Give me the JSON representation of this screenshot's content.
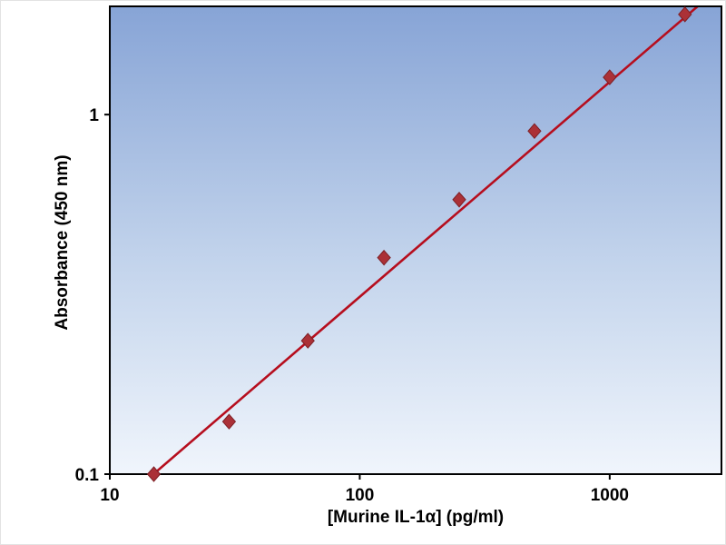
{
  "chart_data": {
    "type": "scatter",
    "title": "",
    "xlabel": "[Murine IL-1α] (pg/ml)",
    "ylabel": "Absorbance (450 nm)",
    "x_scale": "log",
    "y_scale": "log",
    "xlim": [
      10,
      2800
    ],
    "ylim": [
      0.1,
      2.0
    ],
    "x_ticks": [
      {
        "value": 10,
        "label": "10"
      },
      {
        "value": 100,
        "label": "100"
      },
      {
        "value": 1000,
        "label": "1000"
      }
    ],
    "y_ticks": [
      {
        "value": 0.1,
        "label": "0.1"
      },
      {
        "value": 1,
        "label": "1"
      }
    ],
    "points": [
      {
        "x": 15,
        "y": 0.1
      },
      {
        "x": 30,
        "y": 0.14
      },
      {
        "x": 62,
        "y": 0.235
      },
      {
        "x": 125,
        "y": 0.4
      },
      {
        "x": 250,
        "y": 0.58
      },
      {
        "x": 500,
        "y": 0.9
      },
      {
        "x": 1000,
        "y": 1.27
      },
      {
        "x": 2000,
        "y": 1.9
      }
    ],
    "trend_line": {
      "start": {
        "x": 13,
        "y": 0.092
      },
      "end": {
        "x": 2400,
        "y": 2.08
      }
    },
    "legend": null,
    "grid": false,
    "colors": {
      "point_fill": "#ab3137",
      "point_stroke": "#7d2026",
      "trend_line": "#b60e1e",
      "plot_border": "#000000",
      "plot_bg_top": "#87a4d6",
      "plot_bg_mid": "#c3d4ec",
      "plot_bg_bottom": "#f0f5fc"
    }
  }
}
